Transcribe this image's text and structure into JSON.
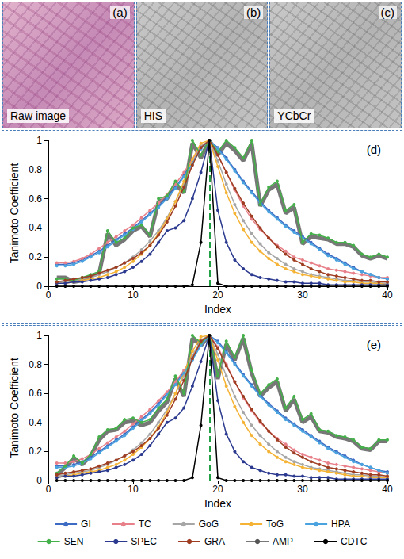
{
  "panels": [
    {
      "letter": "(a)",
      "label": "Raw image"
    },
    {
      "letter": "(b)",
      "label": "HIS"
    },
    {
      "letter": "(c)",
      "label": "YCbCr"
    }
  ],
  "chart_data": [
    {
      "type": "line",
      "letter": "(d)",
      "xlabel": "Index",
      "ylabel": "Tanimoto Coefficient",
      "xlim": [
        0,
        40
      ],
      "xticks": [
        0,
        10,
        20,
        30,
        40
      ],
      "ylim": [
        0,
        1
      ],
      "yticks": [
        0,
        0.2,
        0.4,
        0.6,
        0.8,
        1
      ],
      "grid": false,
      "reference_line": {
        "x": 19,
        "color": "#22a045",
        "line_style": "dashed"
      },
      "x": [
        1,
        2,
        3,
        4,
        5,
        6,
        7,
        8,
        9,
        10,
        11,
        12,
        13,
        14,
        15,
        16,
        17,
        18,
        19,
        20,
        21,
        22,
        23,
        24,
        25,
        26,
        27,
        28,
        29,
        30,
        31,
        32,
        33,
        34,
        35,
        36,
        37,
        38,
        39,
        40
      ],
      "series": [
        {
          "name": "GI",
          "color": "#3d6bc4",
          "marker": "circle",
          "line_style": "solid",
          "values": [
            0.15,
            0.15,
            0.16,
            0.18,
            0.21,
            0.24,
            0.28,
            0.32,
            0.36,
            0.4,
            0.45,
            0.5,
            0.55,
            0.61,
            0.68,
            0.76,
            0.85,
            0.95,
            1,
            0.95,
            0.88,
            0.8,
            0.72,
            0.65,
            0.58,
            0.52,
            0.47,
            0.42,
            0.38,
            0.34,
            0.3,
            0.26,
            0.22,
            0.19,
            0.16,
            0.13,
            0.1,
            0.08,
            0.06,
            0.05
          ]
        },
        {
          "name": "TC",
          "color": "#e8808a",
          "marker": "circle",
          "line_style": "solid",
          "values": [
            0.16,
            0.16,
            0.17,
            0.19,
            0.22,
            0.26,
            0.3,
            0.34,
            0.38,
            0.42,
            0.47,
            0.52,
            0.57,
            0.63,
            0.7,
            0.78,
            0.87,
            0.96,
            1,
            0.9,
            0.78,
            0.66,
            0.55,
            0.46,
            0.39,
            0.33,
            0.28,
            0.24,
            0.2,
            0.18,
            0.16,
            0.14,
            0.12,
            0.11,
            0.1,
            0.09,
            0.08,
            0.07,
            0.06,
            0.06
          ]
        },
        {
          "name": "GoG",
          "color": "#a6a6a6",
          "marker": "circle",
          "line_style": "solid",
          "values": [
            0.03,
            0.03,
            0.04,
            0.05,
            0.06,
            0.08,
            0.1,
            0.13,
            0.16,
            0.2,
            0.25,
            0.31,
            0.38,
            0.47,
            0.58,
            0.7,
            0.84,
            0.96,
            1,
            0.86,
            0.7,
            0.56,
            0.45,
            0.36,
            0.29,
            0.23,
            0.19,
            0.15,
            0.12,
            0.1,
            0.08,
            0.07,
            0.06,
            0.05,
            0.04,
            0.04,
            0.03,
            0.03,
            0.02,
            0.02
          ]
        },
        {
          "name": "ToG",
          "color": "#f5b335",
          "marker": "circle",
          "line_style": "solid",
          "values": [
            0.02,
            0.02,
            0.03,
            0.04,
            0.05,
            0.06,
            0.08,
            0.1,
            0.13,
            0.17,
            0.22,
            0.28,
            0.36,
            0.46,
            0.58,
            0.72,
            0.87,
            0.98,
            1,
            0.82,
            0.64,
            0.5,
            0.39,
            0.3,
            0.24,
            0.19,
            0.15,
            0.12,
            0.1,
            0.08,
            0.07,
            0.06,
            0.05,
            0.04,
            0.03,
            0.03,
            0.02,
            0.02,
            0.02,
            0.01
          ]
        },
        {
          "name": "HPA",
          "color": "#4aa3df",
          "marker": "circle",
          "line_style": "solid",
          "values": [
            0.14,
            0.14,
            0.15,
            0.17,
            0.2,
            0.23,
            0.27,
            0.31,
            0.35,
            0.39,
            0.44,
            0.49,
            0.54,
            0.6,
            0.67,
            0.75,
            0.84,
            0.94,
            1,
            0.94,
            0.87,
            0.79,
            0.71,
            0.64,
            0.57,
            0.51,
            0.46,
            0.41,
            0.37,
            0.33,
            0.29,
            0.25,
            0.21,
            0.18,
            0.15,
            0.12,
            0.1,
            0.08,
            0.06,
            0.05
          ]
        },
        {
          "name": "SEN",
          "color": "#44b049",
          "marker": "circle",
          "line_style": "solid",
          "values": [
            0.05,
            0.05,
            0.04,
            0.06,
            0.08,
            0.1,
            0.38,
            0.3,
            0.33,
            0.4,
            0.42,
            0.35,
            0.6,
            0.62,
            0.72,
            0.65,
            1,
            0.9,
            1,
            0.92,
            1,
            0.95,
            0.88,
            1,
            0.56,
            0.68,
            0.72,
            0.52,
            0.56,
            0.3,
            0.36,
            0.35,
            0.33,
            0.3,
            0.3,
            0.28,
            0.22,
            0.2,
            0.22,
            0.2
          ]
        },
        {
          "name": "SPEC",
          "color": "#2b3a8f",
          "marker": "circle",
          "line_style": "solid",
          "values": [
            0.02,
            0.02,
            0.03,
            0.03,
            0.04,
            0.05,
            0.06,
            0.08,
            0.1,
            0.13,
            0.17,
            0.22,
            0.3,
            0.38,
            0.4,
            0.45,
            0.6,
            0.78,
            1,
            0.52,
            0.3,
            0.18,
            0.12,
            0.08,
            0.06,
            0.05,
            0.04,
            0.03,
            0.03,
            0.02,
            0.02,
            0.02,
            0.01,
            0.01,
            0.01,
            0.01,
            0.01,
            0.01,
            0.01,
            0.01
          ]
        },
        {
          "name": "GRA",
          "color": "#9e3d22",
          "marker": "circle",
          "line_style": "solid",
          "values": [
            0.03,
            0.04,
            0.05,
            0.06,
            0.07,
            0.09,
            0.11,
            0.13,
            0.16,
            0.19,
            0.23,
            0.28,
            0.35,
            0.44,
            0.55,
            0.68,
            0.83,
            0.95,
            1,
            0.9,
            0.78,
            0.67,
            0.57,
            0.48,
            0.4,
            0.33,
            0.27,
            0.22,
            0.18,
            0.15,
            0.12,
            0.1,
            0.08,
            0.07,
            0.06,
            0.05,
            0.04,
            0.04,
            0.03,
            0.03
          ]
        },
        {
          "name": "AMP",
          "color": "#555555",
          "marker": "none",
          "line_style": "thick",
          "values": [
            0.06,
            0.06,
            0.03,
            0.04,
            0.07,
            0.09,
            0.36,
            0.28,
            0.32,
            0.38,
            0.41,
            0.34,
            0.58,
            0.6,
            0.7,
            0.64,
            0.98,
            0.88,
            1,
            0.9,
            0.98,
            0.93,
            0.86,
            0.98,
            0.55,
            0.66,
            0.7,
            0.5,
            0.54,
            0.29,
            0.34,
            0.33,
            0.32,
            0.29,
            0.29,
            0.27,
            0.21,
            0.19,
            0.21,
            0.19
          ]
        },
        {
          "name": "CDTC",
          "color": "#000000",
          "marker": "circle",
          "line_style": "solid",
          "values": [
            0,
            0,
            0,
            0,
            0,
            0,
            0,
            0,
            0,
            0,
            0,
            0,
            0,
            0,
            0,
            0,
            0.01,
            0.3,
            1,
            0.02,
            0,
            0,
            0,
            0,
            0,
            0,
            0,
            0,
            0,
            0,
            0,
            0,
            0,
            0,
            0,
            0,
            0,
            0,
            0,
            0
          ]
        }
      ]
    },
    {
      "type": "line",
      "letter": "(e)",
      "xlabel": "Index",
      "ylabel": "Tanimoto Coefficient",
      "xlim": [
        0,
        40
      ],
      "xticks": [
        0,
        10,
        20,
        30,
        40
      ],
      "ylim": [
        0,
        1
      ],
      "yticks": [
        0,
        0.2,
        0.4,
        0.6,
        0.8,
        1
      ],
      "grid": false,
      "legend": "bottom",
      "reference_line": {
        "x": 19,
        "color": "#22a045",
        "line_style": "dashed"
      },
      "x": [
        1,
        2,
        3,
        4,
        5,
        6,
        7,
        8,
        9,
        10,
        11,
        12,
        13,
        14,
        15,
        16,
        17,
        18,
        19,
        20,
        21,
        22,
        23,
        24,
        25,
        26,
        27,
        28,
        29,
        30,
        31,
        32,
        33,
        34,
        35,
        36,
        37,
        38,
        39,
        40
      ],
      "series": [
        {
          "name": "GI",
          "color": "#3d6bc4",
          "marker": "circle",
          "line_style": "solid",
          "values": [
            0.1,
            0.1,
            0.11,
            0.13,
            0.16,
            0.2,
            0.24,
            0.28,
            0.32,
            0.37,
            0.42,
            0.47,
            0.53,
            0.6,
            0.67,
            0.75,
            0.84,
            0.94,
            1,
            0.96,
            0.89,
            0.81,
            0.73,
            0.66,
            0.59,
            0.53,
            0.48,
            0.43,
            0.39,
            0.35,
            0.31,
            0.27,
            0.23,
            0.2,
            0.17,
            0.14,
            0.11,
            0.09,
            0.07,
            0.06
          ]
        },
        {
          "name": "TC",
          "color": "#e8808a",
          "marker": "circle",
          "line_style": "solid",
          "values": [
            0.12,
            0.12,
            0.13,
            0.15,
            0.18,
            0.22,
            0.26,
            0.3,
            0.34,
            0.39,
            0.44,
            0.49,
            0.55,
            0.61,
            0.68,
            0.76,
            0.85,
            0.95,
            1,
            0.92,
            0.8,
            0.68,
            0.57,
            0.48,
            0.4,
            0.34,
            0.29,
            0.25,
            0.21,
            0.18,
            0.16,
            0.14,
            0.12,
            0.11,
            0.1,
            0.09,
            0.08,
            0.07,
            0.06,
            0.05
          ]
        },
        {
          "name": "GoG",
          "color": "#a6a6a6",
          "marker": "circle",
          "line_style": "solid",
          "values": [
            0.03,
            0.04,
            0.05,
            0.06,
            0.07,
            0.09,
            0.11,
            0.14,
            0.17,
            0.21,
            0.26,
            0.32,
            0.4,
            0.49,
            0.6,
            0.72,
            0.86,
            0.97,
            1,
            0.87,
            0.72,
            0.58,
            0.47,
            0.38,
            0.31,
            0.25,
            0.2,
            0.16,
            0.13,
            0.11,
            0.09,
            0.08,
            0.07,
            0.06,
            0.05,
            0.04,
            0.04,
            0.03,
            0.03,
            0.02
          ]
        },
        {
          "name": "ToG",
          "color": "#f5b335",
          "marker": "circle",
          "line_style": "solid",
          "values": [
            0.02,
            0.03,
            0.04,
            0.05,
            0.06,
            0.07,
            0.09,
            0.11,
            0.14,
            0.18,
            0.23,
            0.29,
            0.37,
            0.47,
            0.6,
            0.74,
            0.89,
            0.99,
            1,
            0.83,
            0.65,
            0.51,
            0.4,
            0.31,
            0.25,
            0.2,
            0.16,
            0.13,
            0.11,
            0.09,
            0.08,
            0.07,
            0.06,
            0.05,
            0.04,
            0.03,
            0.03,
            0.02,
            0.02,
            0.02
          ]
        },
        {
          "name": "HPA",
          "color": "#4aa3df",
          "marker": "circle",
          "line_style": "solid",
          "values": [
            0.09,
            0.09,
            0.1,
            0.12,
            0.15,
            0.19,
            0.23,
            0.27,
            0.31,
            0.36,
            0.41,
            0.46,
            0.52,
            0.59,
            0.66,
            0.74,
            0.83,
            0.93,
            1,
            0.95,
            0.88,
            0.8,
            0.72,
            0.65,
            0.58,
            0.52,
            0.47,
            0.42,
            0.38,
            0.34,
            0.3,
            0.26,
            0.22,
            0.19,
            0.16,
            0.13,
            0.11,
            0.09,
            0.07,
            0.05
          ]
        },
        {
          "name": "SEN",
          "color": "#44b049",
          "marker": "circle",
          "line_style": "solid",
          "values": [
            0.05,
            0.1,
            0.17,
            0.12,
            0.18,
            0.3,
            0.35,
            0.36,
            0.42,
            0.43,
            0.4,
            0.42,
            0.5,
            0.56,
            0.72,
            0.6,
            1,
            0.95,
            1,
            0.72,
            0.96,
            0.85,
            1,
            0.76,
            0.6,
            0.66,
            0.7,
            0.5,
            0.58,
            0.42,
            0.46,
            0.35,
            0.34,
            0.31,
            0.3,
            0.28,
            0.23,
            0.22,
            0.28,
            0.28
          ]
        },
        {
          "name": "SPEC",
          "color": "#2b3a8f",
          "marker": "circle",
          "line_style": "solid",
          "values": [
            0.02,
            0.03,
            0.03,
            0.04,
            0.05,
            0.06,
            0.07,
            0.09,
            0.11,
            0.14,
            0.18,
            0.24,
            0.32,
            0.4,
            0.43,
            0.5,
            0.65,
            0.82,
            1,
            0.55,
            0.32,
            0.2,
            0.13,
            0.09,
            0.07,
            0.05,
            0.04,
            0.04,
            0.03,
            0.03,
            0.02,
            0.02,
            0.02,
            0.01,
            0.01,
            0.01,
            0.01,
            0.01,
            0.01,
            0.01
          ]
        },
        {
          "name": "GRA",
          "color": "#9e3d22",
          "marker": "circle",
          "line_style": "solid",
          "values": [
            0.04,
            0.05,
            0.06,
            0.07,
            0.08,
            0.1,
            0.12,
            0.14,
            0.17,
            0.2,
            0.24,
            0.29,
            0.36,
            0.45,
            0.56,
            0.69,
            0.84,
            0.96,
            1,
            0.91,
            0.79,
            0.68,
            0.58,
            0.49,
            0.41,
            0.34,
            0.28,
            0.23,
            0.19,
            0.16,
            0.13,
            0.11,
            0.09,
            0.08,
            0.07,
            0.06,
            0.05,
            0.04,
            0.04,
            0.03
          ]
        },
        {
          "name": "AMP",
          "color": "#555555",
          "marker": "none",
          "line_style": "thick",
          "values": [
            0.04,
            0.09,
            0.15,
            0.11,
            0.17,
            0.28,
            0.34,
            0.35,
            0.4,
            0.41,
            0.38,
            0.4,
            0.48,
            0.54,
            0.7,
            0.58,
            0.98,
            0.93,
            1,
            0.7,
            0.94,
            0.83,
            0.98,
            0.74,
            0.58,
            0.64,
            0.68,
            0.48,
            0.56,
            0.4,
            0.44,
            0.34,
            0.33,
            0.3,
            0.29,
            0.27,
            0.22,
            0.21,
            0.27,
            0.27
          ]
        },
        {
          "name": "CDTC",
          "color": "#000000",
          "marker": "circle",
          "line_style": "solid",
          "values": [
            0,
            0,
            0,
            0,
            0,
            0,
            0,
            0,
            0,
            0,
            0,
            0,
            0,
            0,
            0,
            0,
            0.02,
            0.38,
            1,
            0.02,
            0,
            0,
            0,
            0,
            0,
            0,
            0,
            0,
            0,
            0,
            0,
            0,
            0,
            0,
            0,
            0,
            0,
            0,
            0,
            0
          ]
        }
      ]
    }
  ]
}
